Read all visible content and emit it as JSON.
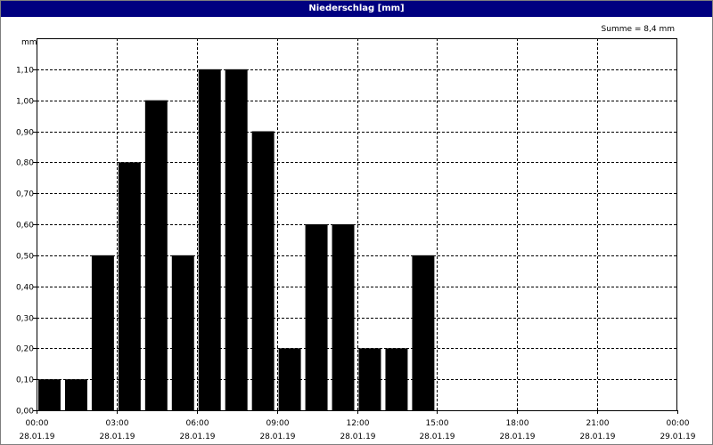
{
  "window": {
    "title": "Niederschlag [mm]"
  },
  "chart_data": {
    "type": "bar",
    "title": "Niederschlag [mm]",
    "ylabel": "mm",
    "annotation": "Summe = 8,4 mm",
    "ylim": [
      0,
      1.2
    ],
    "yticks": [
      "0,00",
      "0,10",
      "0,20",
      "0,30",
      "0,40",
      "0,50",
      "0,60",
      "0,70",
      "0,80",
      "0,90",
      "1,00",
      "1,10"
    ],
    "xlim_hours": [
      0,
      24
    ],
    "xticks": [
      {
        "time": "00:00",
        "date": "28.01.19"
      },
      {
        "time": "03:00",
        "date": "28.01.19"
      },
      {
        "time": "06:00",
        "date": "28.01.19"
      },
      {
        "time": "09:00",
        "date": "28.01.19"
      },
      {
        "time": "12:00",
        "date": "28.01.19"
      },
      {
        "time": "15:00",
        "date": "28.01.19"
      },
      {
        "time": "18:00",
        "date": "28.01.19"
      },
      {
        "time": "21:00",
        "date": "28.01.19"
      },
      {
        "time": "00:00",
        "date": "29.01.19"
      }
    ],
    "grid": true,
    "bar_color": "#000000",
    "series": [
      {
        "x": [
          "00:00",
          "01:00",
          "02:00",
          "03:00",
          "04:00",
          "05:00",
          "06:00",
          "07:00",
          "08:00",
          "09:00",
          "10:00",
          "11:00",
          "12:00",
          "13:00",
          "14:00"
        ],
        "values": [
          0.1,
          0.1,
          0.5,
          0.8,
          1.0,
          0.5,
          1.1,
          1.1,
          0.9,
          0.2,
          0.6,
          0.6,
          0.2,
          0.2,
          0.5
        ]
      }
    ]
  }
}
